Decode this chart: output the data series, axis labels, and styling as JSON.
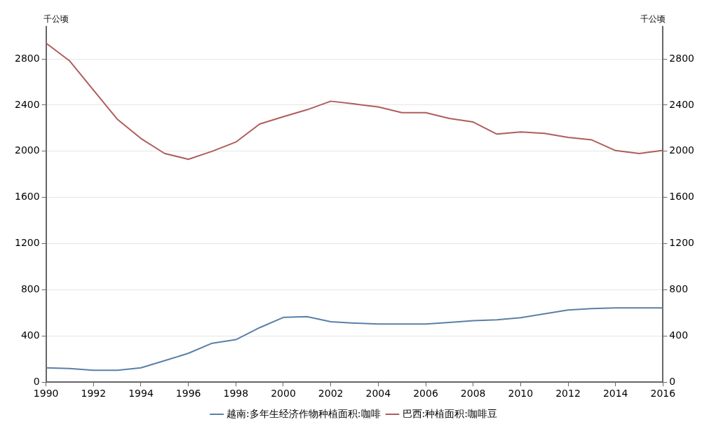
{
  "chart_data": {
    "type": "line",
    "ylabel": "千公顷",
    "y2label": "千公顷",
    "x": [
      1990,
      1991,
      1992,
      1993,
      1994,
      1995,
      1996,
      1997,
      1998,
      1999,
      2000,
      2001,
      2002,
      2003,
      2004,
      2005,
      2006,
      2007,
      2008,
      2009,
      2010,
      2011,
      2012,
      2013,
      2014,
      2015,
      2016
    ],
    "xlim": [
      1990,
      2016
    ],
    "xticks": [
      1990,
      1992,
      1994,
      1996,
      1998,
      2000,
      2002,
      2004,
      2006,
      2008,
      2010,
      2012,
      2014,
      2016
    ],
    "ylim": [
      0,
      3080
    ],
    "yticks": [
      0,
      400,
      800,
      1200,
      1600,
      2000,
      2400,
      2800
    ],
    "y2lim": [
      0,
      3080
    ],
    "y2ticks": [
      0,
      400,
      800,
      1200,
      1600,
      2000,
      2400,
      2800
    ],
    "series": [
      {
        "name": "越南:多年生经济作物种植面积:咖啡",
        "color": "#5b7fa8",
        "values": [
          124,
          118,
          103,
          103,
          124,
          186,
          250,
          337,
          368,
          472,
          561,
          567,
          524,
          512,
          503,
          503,
          503,
          517,
          532,
          540,
          559,
          592,
          625,
          638,
          644,
          644,
          644
        ]
      },
      {
        "name": "巴西:种植面积:咖啡豆",
        "color": "#b05c5c",
        "values": [
          2937,
          2782,
          2530,
          2279,
          2111,
          1981,
          1931,
          2000,
          2080,
          2236,
          2300,
          2360,
          2434,
          2410,
          2385,
          2335,
          2335,
          2285,
          2254,
          2149,
          2167,
          2155,
          2120,
          2099,
          2006,
          1981,
          2008
        ]
      }
    ],
    "grid": "y",
    "legend": "bottom",
    "marker": "none",
    "line_style": "solid"
  }
}
